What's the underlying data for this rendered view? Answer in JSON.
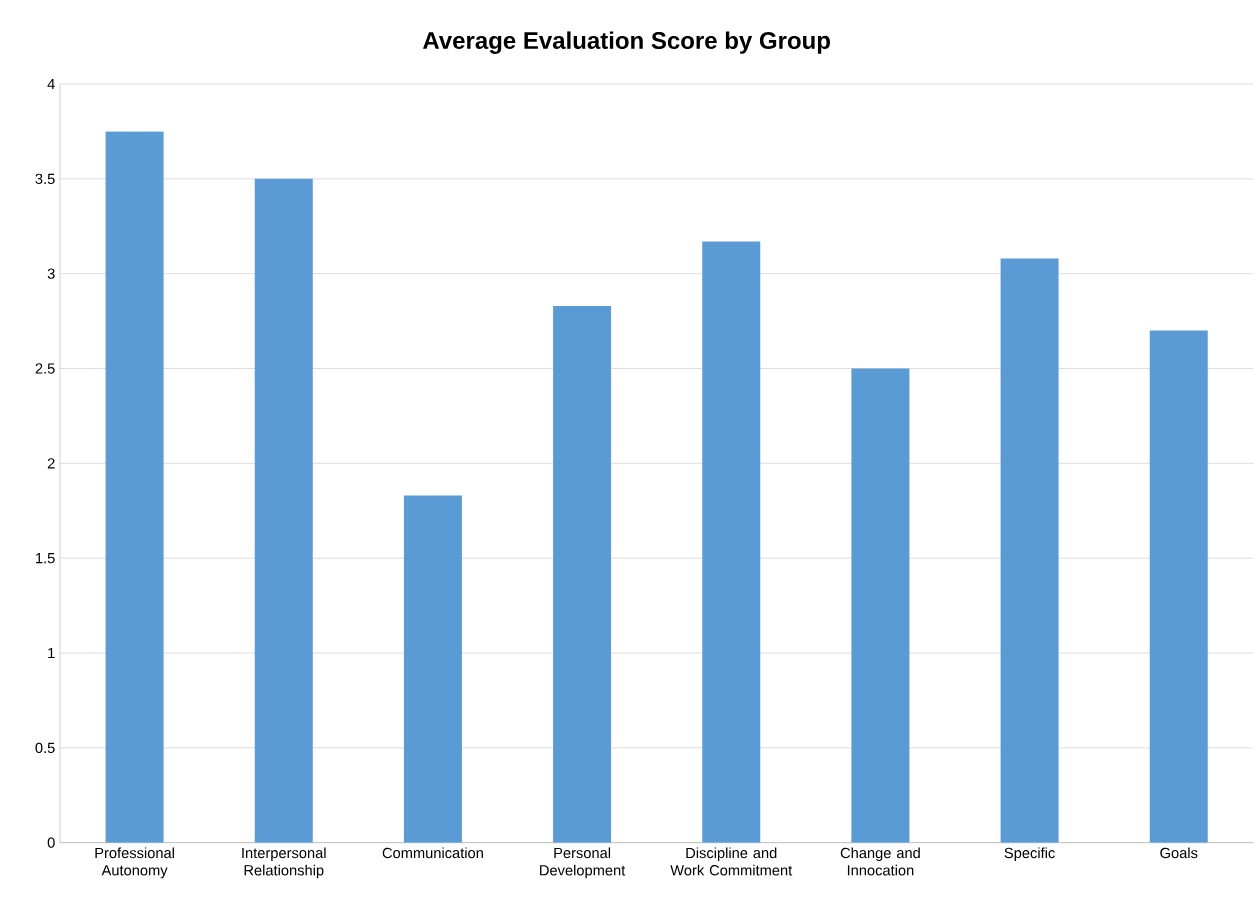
{
  "chart_data": {
    "type": "bar",
    "title": "Average Evaluation Score by Group",
    "categories": [
      "Professional Autonomy",
      "Interpersonal Relationship",
      "Communication",
      "Personal Development",
      "Discipline and Work Commitment",
      "Change and Innocation",
      "Specific",
      "Goals"
    ],
    "values": [
      3.75,
      3.5,
      1.83,
      2.83,
      3.17,
      2.5,
      3.08,
      2.7
    ],
    "color": "#5b9bd5",
    "ylim": [
      0,
      4
    ],
    "yticks": [
      0,
      0.5,
      1,
      1.5,
      2,
      2.5,
      3,
      3.5,
      4
    ],
    "grid": "y"
  }
}
